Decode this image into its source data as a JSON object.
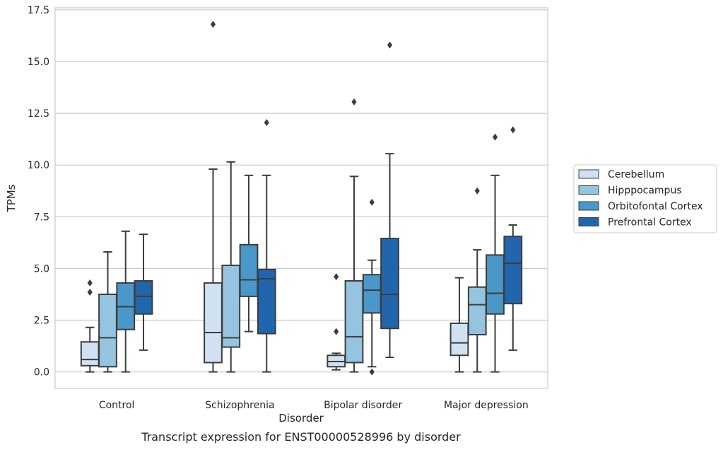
{
  "chart_data": {
    "type": "box",
    "title": "",
    "caption": "Transcript expression for ENST00000528996 by disorder",
    "xlabel": "Disorder",
    "ylabel": "TPMs",
    "ylim": [
      -0.8,
      17.6
    ],
    "yticks": [
      0.0,
      2.5,
      5.0,
      7.5,
      10.0,
      12.5,
      15.0,
      17.5
    ],
    "ytick_labels": [
      "0.0",
      "2.5",
      "5.0",
      "7.5",
      "10.0",
      "12.5",
      "15.0",
      "17.5"
    ],
    "grid": "horizontal",
    "legend_position": "right",
    "categories": [
      "Control",
      "Schizophrenia",
      "Bipolar disorder",
      "Major depression"
    ],
    "series": [
      {
        "name": "Cerebellum",
        "color": "#d0e1f2",
        "boxes": [
          {
            "whisker_low": 0.0,
            "q1": 0.3,
            "median": 0.6,
            "q3": 1.45,
            "whisker_high": 2.15,
            "outliers": [
              3.85,
              4.3
            ]
          },
          {
            "whisker_low": 0.0,
            "q1": 0.45,
            "median": 1.9,
            "q3": 4.3,
            "whisker_high": 9.8,
            "outliers": [
              16.8
            ]
          },
          {
            "whisker_low": 0.1,
            "q1": 0.25,
            "median": 0.5,
            "q3": 0.8,
            "whisker_high": 0.9,
            "outliers": [
              1.95,
              4.6
            ]
          },
          {
            "whisker_low": 0.0,
            "q1": 0.8,
            "median": 1.4,
            "q3": 2.35,
            "whisker_high": 4.55,
            "outliers": []
          }
        ]
      },
      {
        "name": "Hipppocampus",
        "color": "#94c4df",
        "boxes": [
          {
            "whisker_low": 0.0,
            "q1": 0.25,
            "median": 1.65,
            "q3": 3.75,
            "whisker_high": 5.8,
            "outliers": []
          },
          {
            "whisker_low": 0.0,
            "q1": 1.2,
            "median": 1.65,
            "q3": 5.15,
            "whisker_high": 10.15,
            "outliers": []
          },
          {
            "whisker_low": 0.0,
            "q1": 0.45,
            "median": 1.7,
            "q3": 4.4,
            "whisker_high": 9.45,
            "outliers": [
              13.05
            ]
          },
          {
            "whisker_low": 0.0,
            "q1": 1.8,
            "median": 3.25,
            "q3": 4.1,
            "whisker_high": 5.9,
            "outliers": [
              8.75
            ]
          }
        ]
      },
      {
        "name": "Orbitofontal Cortex",
        "color": "#4a98c9",
        "boxes": [
          {
            "whisker_low": 0.0,
            "q1": 2.05,
            "median": 3.15,
            "q3": 4.3,
            "whisker_high": 6.8,
            "outliers": []
          },
          {
            "whisker_low": 1.95,
            "q1": 3.65,
            "median": 4.45,
            "q3": 6.15,
            "whisker_high": 9.5,
            "outliers": []
          },
          {
            "whisker_low": 0.25,
            "q1": 2.85,
            "median": 3.95,
            "q3": 4.7,
            "whisker_high": 5.4,
            "outliers": [
              0.0,
              8.2
            ]
          },
          {
            "whisker_low": 0.0,
            "q1": 2.8,
            "median": 3.8,
            "q3": 5.65,
            "whisker_high": 9.5,
            "outliers": [
              11.35
            ]
          }
        ]
      },
      {
        "name": "Prefrontal Cortex",
        "color": "#2166ac",
        "boxes": [
          {
            "whisker_low": 1.05,
            "q1": 2.8,
            "median": 3.65,
            "q3": 4.4,
            "whisker_high": 6.65,
            "outliers": []
          },
          {
            "whisker_low": 0.0,
            "q1": 1.85,
            "median": 4.5,
            "q3": 4.95,
            "whisker_high": 9.5,
            "outliers": [
              12.05
            ]
          },
          {
            "whisker_low": 0.7,
            "q1": 2.1,
            "median": 3.75,
            "q3": 6.45,
            "whisker_high": 10.55,
            "outliers": [
              15.8
            ]
          },
          {
            "whisker_low": 1.05,
            "q1": 3.3,
            "median": 5.25,
            "q3": 6.55,
            "whisker_high": 7.1,
            "outliers": [
              11.7
            ]
          }
        ]
      }
    ]
  }
}
